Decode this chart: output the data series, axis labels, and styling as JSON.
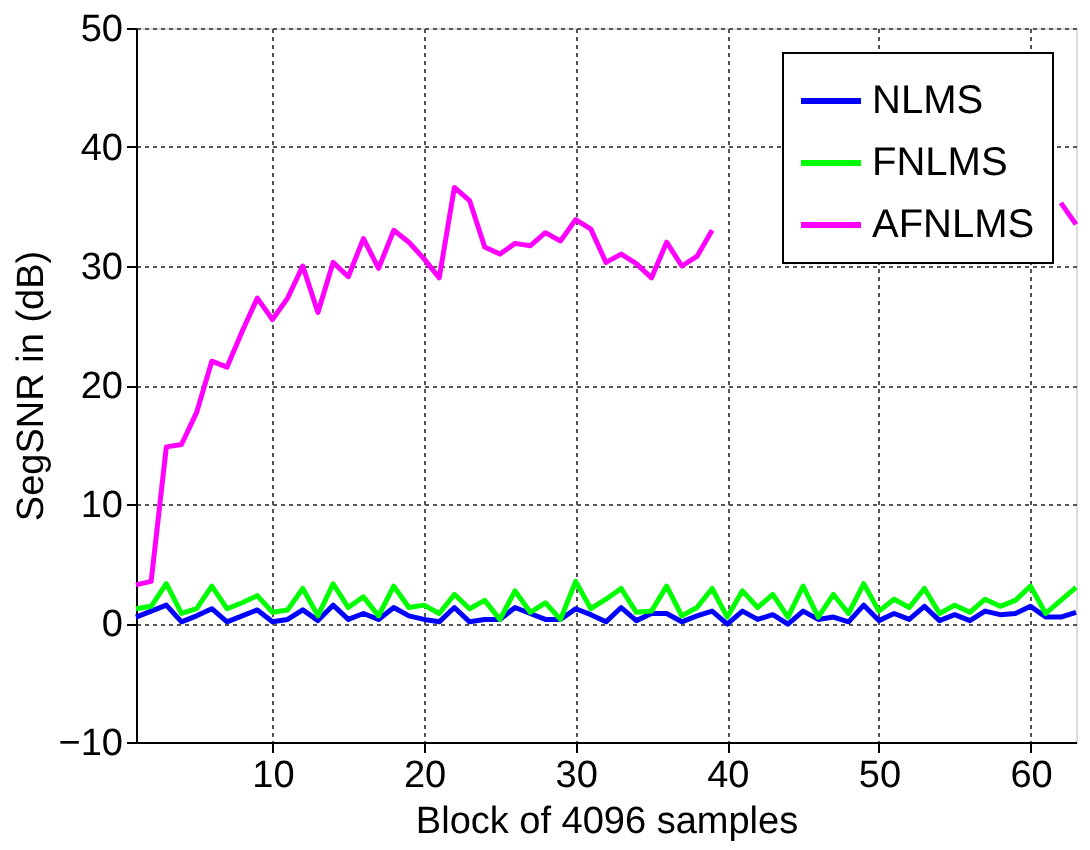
{
  "chart_data": {
    "type": "line",
    "xlabel": "Block of 4096 samples",
    "ylabel": "SegSNR in (dB)",
    "x": [
      1,
      2,
      3,
      4,
      5,
      6,
      7,
      8,
      9,
      10,
      11,
      12,
      13,
      14,
      15,
      16,
      17,
      18,
      19,
      20,
      21,
      22,
      23,
      24,
      25,
      26,
      27,
      28,
      29,
      30,
      31,
      32,
      33,
      34,
      35,
      36,
      37,
      38,
      39,
      40,
      41,
      42,
      43,
      44,
      45,
      46,
      47,
      48,
      49,
      50,
      51,
      52,
      53,
      54,
      55,
      56,
      57,
      58,
      59,
      60,
      61,
      62,
      63
    ],
    "series": [
      {
        "name": "NLMS",
        "color": "#0000ff",
        "values": [
          0.5,
          1.0,
          1.5,
          0.1,
          0.6,
          1.2,
          0.1,
          0.6,
          1.1,
          0.1,
          0.3,
          1.1,
          0.2,
          1.5,
          0.3,
          0.8,
          0.3,
          1.3,
          0.6,
          0.3,
          0.1,
          1.3,
          0.1,
          0.3,
          0.3,
          1.3,
          0.8,
          0.3,
          0.3,
          1.2,
          0.7,
          0.1,
          1.3,
          0.2,
          0.8,
          0.8,
          0.1,
          0.6,
          1.0,
          -0.1,
          1.0,
          0.3,
          0.7,
          -0.1,
          1.0,
          0.3,
          0.5,
          0.1,
          1.5,
          0.2,
          0.8,
          0.3,
          1.4,
          0.2,
          0.7,
          0.2,
          1.0,
          0.7,
          0.8,
          1.4,
          0.5,
          0.5,
          0.9
        ]
      },
      {
        "name": "FNLMS",
        "color": "#00ff00",
        "values": [
          1.2,
          1.4,
          3.3,
          0.8,
          1.2,
          3.1,
          1.2,
          1.7,
          2.3,
          0.9,
          1.1,
          2.9,
          0.6,
          3.3,
          1.3,
          2.2,
          0.6,
          3.1,
          1.3,
          1.5,
          0.8,
          2.4,
          1.2,
          1.9,
          0.3,
          2.7,
          0.9,
          1.7,
          0.3,
          3.5,
          1.2,
          2.0,
          2.9,
          0.9,
          1.0,
          3.1,
          0.6,
          1.3,
          2.9,
          0.5,
          2.7,
          1.3,
          2.4,
          0.5,
          3.1,
          0.5,
          2.4,
          0.8,
          3.3,
          1.0,
          2.0,
          1.3,
          2.9,
          0.8,
          1.5,
          0.9,
          2.0,
          1.4,
          1.9,
          3.1,
          0.8,
          1.9,
          3.0
        ]
      },
      {
        "name": "AFNLMS",
        "color": "#ff00ff",
        "values": [
          3.2,
          3.5,
          14.8,
          15.0,
          17.7,
          22.0,
          21.5,
          24.5,
          27.3,
          25.5,
          27.3,
          30.0,
          26.1,
          30.3,
          29.1,
          32.3,
          29.8,
          33.0,
          32.0,
          30.6,
          29.0,
          36.6,
          35.5,
          31.6,
          31.0,
          31.9,
          31.7,
          32.8,
          32.1,
          33.9,
          33.1,
          30.3,
          31.0,
          30.2,
          29.0,
          32.0,
          30.0,
          30.8,
          33.0,
          null,
          null,
          null,
          null,
          null,
          null,
          null,
          null,
          null,
          null,
          null,
          null,
          null,
          null,
          null,
          null,
          null,
          null,
          null,
          null,
          null,
          null,
          35.3,
          33.5
        ]
      }
    ],
    "xlim": [
      1,
      63
    ],
    "xticks": [
      10,
      20,
      30,
      40,
      50,
      60
    ],
    "ylim": [
      -10,
      50
    ],
    "yticks": [
      -10,
      0,
      10,
      20,
      30,
      40,
      50
    ],
    "grid": true,
    "legend": "top right",
    "marker": "none",
    "line_style": "solid"
  }
}
